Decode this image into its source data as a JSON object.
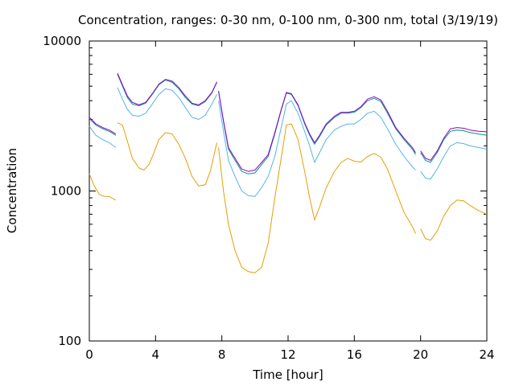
{
  "chart_data": {
    "type": "line",
    "title": "Concentration, ranges: 0-30 nm, 0-100 nm, 0-300 nm, total (3/19/19)",
    "xlabel": "Time [hour]",
    "ylabel": "Concentration",
    "xlim": [
      0,
      24
    ],
    "ylim": [
      100,
      10000
    ],
    "yscale": "log",
    "grid": false,
    "legend": "none",
    "x_ticks": [
      0,
      4,
      8,
      12,
      16,
      20,
      24
    ],
    "x_tick_labels": [
      "0",
      "4",
      "8",
      "12",
      "16",
      "20",
      "24"
    ],
    "y_ticks": [
      100,
      1000,
      10000
    ],
    "y_tick_labels": [
      "100",
      "1000",
      "10000"
    ],
    "series": [
      {
        "color": "#e69f00",
        "segments": [
          [
            [
              0,
              1300
            ],
            [
              0.3,
              1080
            ],
            [
              0.6,
              950
            ],
            [
              0.9,
              920
            ],
            [
              1.2,
              920
            ],
            [
              1.6,
              870
            ]
          ],
          [
            [
              1.7,
              2850
            ],
            [
              2.0,
              2750
            ],
            [
              2.3,
              2150
            ],
            [
              2.6,
              1650
            ],
            [
              3.0,
              1420
            ],
            [
              3.3,
              1380
            ],
            [
              3.6,
              1500
            ],
            [
              3.9,
              1800
            ],
            [
              4.2,
              2200
            ],
            [
              4.6,
              2450
            ],
            [
              5.0,
              2400
            ],
            [
              5.4,
              2050
            ],
            [
              5.8,
              1650
            ],
            [
              6.2,
              1250
            ],
            [
              6.6,
              1080
            ],
            [
              7.0,
              1100
            ],
            [
              7.3,
              1350
            ],
            [
              7.7,
              2100
            ]
          ],
          [
            [
              7.8,
              1950
            ],
            [
              8.1,
              1000
            ],
            [
              8.4,
              600
            ],
            [
              8.8,
              400
            ],
            [
              9.2,
              310
            ],
            [
              9.6,
              290
            ],
            [
              10.0,
              285
            ],
            [
              10.4,
              310
            ],
            [
              10.8,
              450
            ],
            [
              11.2,
              900
            ],
            [
              11.6,
              1700
            ],
            [
              11.9,
              2750
            ],
            [
              12.2,
              2800
            ],
            [
              12.6,
              2200
            ],
            [
              13.0,
              1350
            ],
            [
              13.3,
              900
            ],
            [
              13.6,
              640
            ],
            [
              13.9,
              780
            ],
            [
              14.3,
              1050
            ],
            [
              14.8,
              1350
            ],
            [
              15.2,
              1550
            ],
            [
              15.6,
              1650
            ],
            [
              16.0,
              1580
            ],
            [
              16.4,
              1560
            ],
            [
              16.8,
              1700
            ],
            [
              17.2,
              1780
            ],
            [
              17.6,
              1680
            ],
            [
              18.0,
              1400
            ],
            [
              18.5,
              1000
            ],
            [
              19.0,
              720
            ],
            [
              19.5,
              580
            ],
            [
              19.7,
              520
            ]
          ],
          [
            [
              20.0,
              560
            ],
            [
              20.3,
              480
            ],
            [
              20.6,
              470
            ],
            [
              21.0,
              540
            ],
            [
              21.4,
              680
            ],
            [
              21.8,
              800
            ],
            [
              22.2,
              870
            ],
            [
              22.6,
              860
            ],
            [
              23.0,
              800
            ],
            [
              23.5,
              740
            ],
            [
              24.0,
              700
            ]
          ]
        ]
      },
      {
        "color": "#56b4e9",
        "segments": [
          [
            [
              0,
              2700
            ],
            [
              0.4,
              2350
            ],
            [
              0.8,
              2200
            ],
            [
              1.2,
              2100
            ],
            [
              1.6,
              1950
            ]
          ],
          [
            [
              1.7,
              4900
            ],
            [
              2.0,
              4100
            ],
            [
              2.3,
              3500
            ],
            [
              2.6,
              3200
            ],
            [
              3.0,
              3150
            ],
            [
              3.4,
              3300
            ],
            [
              3.8,
              3800
            ],
            [
              4.2,
              4400
            ],
            [
              4.6,
              4800
            ],
            [
              5.0,
              4700
            ],
            [
              5.4,
              4200
            ],
            [
              5.8,
              3600
            ],
            [
              6.2,
              3100
            ],
            [
              6.6,
              3000
            ],
            [
              7.0,
              3200
            ],
            [
              7.4,
              3800
            ],
            [
              7.7,
              4400
            ]
          ],
          [
            [
              7.8,
              4000
            ],
            [
              8.1,
              2500
            ],
            [
              8.4,
              1600
            ],
            [
              8.8,
              1250
            ],
            [
              9.2,
              1000
            ],
            [
              9.6,
              930
            ],
            [
              10.0,
              920
            ],
            [
              10.4,
              1050
            ],
            [
              10.8,
              1250
            ],
            [
              11.2,
              1700
            ],
            [
              11.6,
              2700
            ],
            [
              11.9,
              3800
            ],
            [
              12.2,
              4000
            ],
            [
              12.6,
              3300
            ],
            [
              13.0,
              2500
            ],
            [
              13.3,
              2000
            ],
            [
              13.6,
              1550
            ],
            [
              13.9,
              1800
            ],
            [
              14.3,
              2200
            ],
            [
              14.8,
              2550
            ],
            [
              15.2,
              2700
            ],
            [
              15.6,
              2800
            ],
            [
              16.0,
              2800
            ],
            [
              16.4,
              3000
            ],
            [
              16.8,
              3300
            ],
            [
              17.2,
              3400
            ],
            [
              17.6,
              3100
            ],
            [
              18.0,
              2600
            ],
            [
              18.5,
              2050
            ],
            [
              19.0,
              1700
            ],
            [
              19.5,
              1450
            ],
            [
              19.7,
              1380
            ]
          ],
          [
            [
              20.0,
              1350
            ],
            [
              20.3,
              1220
            ],
            [
              20.6,
              1200
            ],
            [
              21.0,
              1400
            ],
            [
              21.4,
              1700
            ],
            [
              21.8,
              2000
            ],
            [
              22.2,
              2100
            ],
            [
              22.6,
              2070
            ],
            [
              23.0,
              2000
            ],
            [
              23.5,
              1950
            ],
            [
              24.0,
              1900
            ]
          ]
        ]
      },
      {
        "color": "#009e73",
        "segments": [
          [
            [
              0,
              3050
            ],
            [
              0.4,
              2750
            ],
            [
              0.8,
              2600
            ],
            [
              1.2,
              2500
            ],
            [
              1.6,
              2350
            ]
          ],
          [
            [
              1.7,
              6000
            ],
            [
              2.0,
              5000
            ],
            [
              2.3,
              4200
            ],
            [
              2.6,
              3800
            ],
            [
              3.0,
              3700
            ],
            [
              3.4,
              3850
            ],
            [
              3.8,
              4400
            ],
            [
              4.2,
              5100
            ],
            [
              4.6,
              5500
            ],
            [
              5.0,
              5300
            ],
            [
              5.4,
              4800
            ],
            [
              5.8,
              4200
            ],
            [
              6.2,
              3800
            ],
            [
              6.6,
              3700
            ],
            [
              7.0,
              3950
            ],
            [
              7.4,
              4500
            ],
            [
              7.7,
              5300
            ]
          ],
          [
            [
              7.8,
              4600
            ],
            [
              8.1,
              2900
            ],
            [
              8.4,
              1900
            ],
            [
              8.8,
              1600
            ],
            [
              9.2,
              1350
            ],
            [
              9.6,
              1300
            ],
            [
              10.0,
              1320
            ],
            [
              10.4,
              1500
            ],
            [
              10.8,
              1700
            ],
            [
              11.2,
              2400
            ],
            [
              11.6,
              3500
            ],
            [
              11.9,
              4500
            ],
            [
              12.2,
              4400
            ],
            [
              12.6,
              3700
            ],
            [
              13.0,
              2800
            ],
            [
              13.3,
              2350
            ],
            [
              13.6,
              2050
            ],
            [
              13.9,
              2300
            ],
            [
              14.3,
              2750
            ],
            [
              14.8,
              3100
            ],
            [
              15.2,
              3300
            ],
            [
              15.6,
              3300
            ],
            [
              16.0,
              3350
            ],
            [
              16.4,
              3600
            ],
            [
              16.8,
              4000
            ],
            [
              17.2,
              4150
            ],
            [
              17.6,
              3950
            ],
            [
              18.0,
              3300
            ],
            [
              18.5,
              2600
            ],
            [
              19.0,
              2200
            ],
            [
              19.5,
              1900
            ],
            [
              19.7,
              1750
            ]
          ],
          [
            [
              20.0,
              1800
            ],
            [
              20.3,
              1600
            ],
            [
              20.6,
              1550
            ],
            [
              21.0,
              1800
            ],
            [
              21.4,
              2200
            ],
            [
              21.8,
              2500
            ],
            [
              22.2,
              2550
            ],
            [
              22.6,
              2520
            ],
            [
              23.0,
              2450
            ],
            [
              23.5,
              2400
            ],
            [
              24.0,
              2350
            ]
          ]
        ]
      },
      {
        "color": "#9400d3",
        "segments": [
          [
            [
              0,
              3100
            ],
            [
              0.4,
              2800
            ],
            [
              0.8,
              2650
            ],
            [
              1.2,
              2550
            ],
            [
              1.6,
              2400
            ]
          ],
          [
            [
              1.7,
              6100
            ],
            [
              2.0,
              5100
            ],
            [
              2.3,
              4300
            ],
            [
              2.6,
              3900
            ],
            [
              3.0,
              3750
            ],
            [
              3.4,
              3900
            ],
            [
              3.8,
              4450
            ],
            [
              4.2,
              5150
            ],
            [
              4.6,
              5550
            ],
            [
              5.0,
              5400
            ],
            [
              5.4,
              4900
            ],
            [
              5.8,
              4300
            ],
            [
              6.2,
              3850
            ],
            [
              6.6,
              3750
            ],
            [
              7.0,
              4000
            ],
            [
              7.4,
              4550
            ],
            [
              7.7,
              5350
            ]
          ],
          [
            [
              7.8,
              4650
            ],
            [
              8.1,
              2950
            ],
            [
              8.4,
              1950
            ],
            [
              8.8,
              1650
            ],
            [
              9.2,
              1400
            ],
            [
              9.6,
              1350
            ],
            [
              10.0,
              1380
            ],
            [
              10.4,
              1550
            ],
            [
              10.8,
              1750
            ],
            [
              11.2,
              2450
            ],
            [
              11.6,
              3550
            ],
            [
              11.9,
              4550
            ],
            [
              12.2,
              4450
            ],
            [
              12.6,
              3750
            ],
            [
              13.0,
              2850
            ],
            [
              13.3,
              2400
            ],
            [
              13.6,
              2100
            ],
            [
              13.9,
              2350
            ],
            [
              14.3,
              2800
            ],
            [
              14.8,
              3150
            ],
            [
              15.2,
              3350
            ],
            [
              15.6,
              3350
            ],
            [
              16.0,
              3400
            ],
            [
              16.4,
              3650
            ],
            [
              16.8,
              4100
            ],
            [
              17.2,
              4250
            ],
            [
              17.6,
              4050
            ],
            [
              18.0,
              3400
            ],
            [
              18.5,
              2650
            ],
            [
              19.0,
              2250
            ],
            [
              19.5,
              1950
            ],
            [
              19.7,
              1800
            ]
          ],
          [
            [
              20.0,
              1850
            ],
            [
              20.3,
              1650
            ],
            [
              20.6,
              1600
            ],
            [
              21.0,
              1850
            ],
            [
              21.4,
              2250
            ],
            [
              21.8,
              2600
            ],
            [
              22.2,
              2650
            ],
            [
              22.6,
              2620
            ],
            [
              23.0,
              2550
            ],
            [
              23.5,
              2500
            ],
            [
              24.0,
              2480
            ]
          ]
        ]
      }
    ]
  }
}
